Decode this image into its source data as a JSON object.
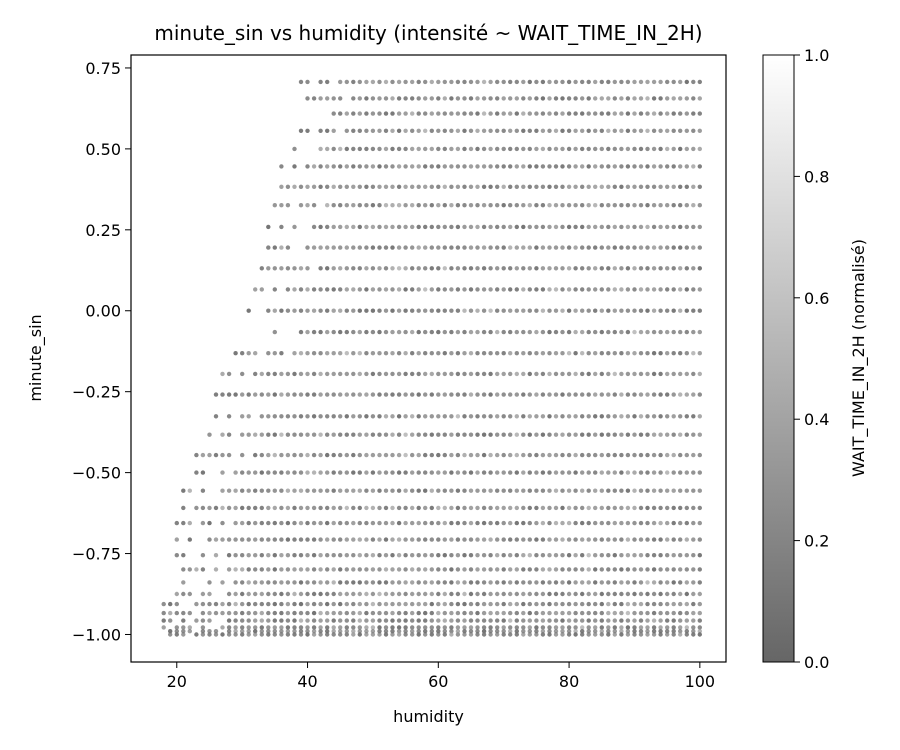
{
  "chart_data": {
    "type": "scatter",
    "title": "minute_sin vs humidity (intensité ~ WAIT_TIME_IN_2H)",
    "xlabel": "humidity",
    "ylabel": "minute_sin",
    "xlim": [
      13,
      104
    ],
    "ylim": [
      -1.085,
      0.79
    ],
    "xticks": [
      20,
      40,
      60,
      80,
      100
    ],
    "xtick_labels": [
      "20",
      "40",
      "60",
      "80",
      "100"
    ],
    "yticks": [
      -1.0,
      -0.75,
      -0.5,
      -0.25,
      0.0,
      0.25,
      0.5,
      0.75
    ],
    "ytick_labels": [
      "−1.00",
      "−0.75",
      "−0.50",
      "−0.25",
      "0.00",
      "0.25",
      "0.50",
      "0.75"
    ],
    "grid": false,
    "colormap": "gray",
    "point_alpha": 0.6,
    "colorbar": {
      "label": "WAIT_TIME_IN_2H (normalisé)",
      "range": [
        0.0,
        1.0
      ],
      "ticks": [
        0.0,
        0.2,
        0.4,
        0.6,
        0.8,
        1.0
      ],
      "tick_labels": [
        "0.0",
        "0.2",
        "0.4",
        "0.6",
        "0.8",
        "1.0"
      ]
    },
    "series": [
      {
        "rows": [
          {
            "y": 0.707,
            "x_min": 39,
            "x_max": 100
          },
          {
            "y": 0.656,
            "x_min": 39,
            "x_max": 100
          },
          {
            "y": 0.609,
            "x_min": 38,
            "x_max": 100
          },
          {
            "y": 0.556,
            "x_min": 38,
            "x_max": 100
          },
          {
            "y": 0.5,
            "x_min": 37,
            "x_max": 100
          },
          {
            "y": 0.446,
            "x_min": 36,
            "x_max": 100
          },
          {
            "y": 0.383,
            "x_min": 35.5,
            "x_max": 100
          },
          {
            "y": 0.326,
            "x_min": 35,
            "x_max": 100
          },
          {
            "y": 0.259,
            "x_min": 34,
            "x_max": 100
          },
          {
            "y": 0.195,
            "x_min": 33.5,
            "x_max": 100
          },
          {
            "y": 0.131,
            "x_min": 33,
            "x_max": 100
          },
          {
            "y": 0.066,
            "x_min": 32,
            "x_max": 100
          },
          {
            "y": 0.0,
            "x_min": 31,
            "x_max": 100
          },
          {
            "y": -0.066,
            "x_min": 30,
            "x_max": 100
          },
          {
            "y": -0.131,
            "x_min": 29,
            "x_max": 100
          },
          {
            "y": -0.195,
            "x_min": 27,
            "x_max": 100
          },
          {
            "y": -0.259,
            "x_min": 26,
            "x_max": 100
          },
          {
            "y": -0.326,
            "x_min": 25,
            "x_max": 100
          },
          {
            "y": -0.383,
            "x_min": 24,
            "x_max": 100
          },
          {
            "y": -0.446,
            "x_min": 23,
            "x_max": 100
          },
          {
            "y": -0.5,
            "x_min": 21.5,
            "x_max": 100
          },
          {
            "y": -0.556,
            "x_min": 21,
            "x_max": 100
          },
          {
            "y": -0.609,
            "x_min": 20,
            "x_max": 100
          },
          {
            "y": -0.656,
            "x_min": 20,
            "x_max": 100
          },
          {
            "y": -0.707,
            "x_min": 20,
            "x_max": 100
          },
          {
            "y": -0.755,
            "x_min": 19.5,
            "x_max": 100
          },
          {
            "y": -0.799,
            "x_min": 19,
            "x_max": 100
          },
          {
            "y": -0.839,
            "x_min": 18.5,
            "x_max": 100
          },
          {
            "y": -0.875,
            "x_min": 17.5,
            "x_max": 100
          },
          {
            "y": -0.906,
            "x_min": 17.5,
            "x_max": 100
          },
          {
            "y": -0.934,
            "x_min": 18,
            "x_max": 100
          },
          {
            "y": -0.957,
            "x_min": 18,
            "x_max": 100
          },
          {
            "y": -0.978,
            "x_min": 18,
            "x_max": 100
          },
          {
            "y": -0.99,
            "x_min": 18,
            "x_max": 100
          },
          {
            "y": -1.0,
            "x_min": 18,
            "x_max": 100
          }
        ]
      }
    ]
  }
}
